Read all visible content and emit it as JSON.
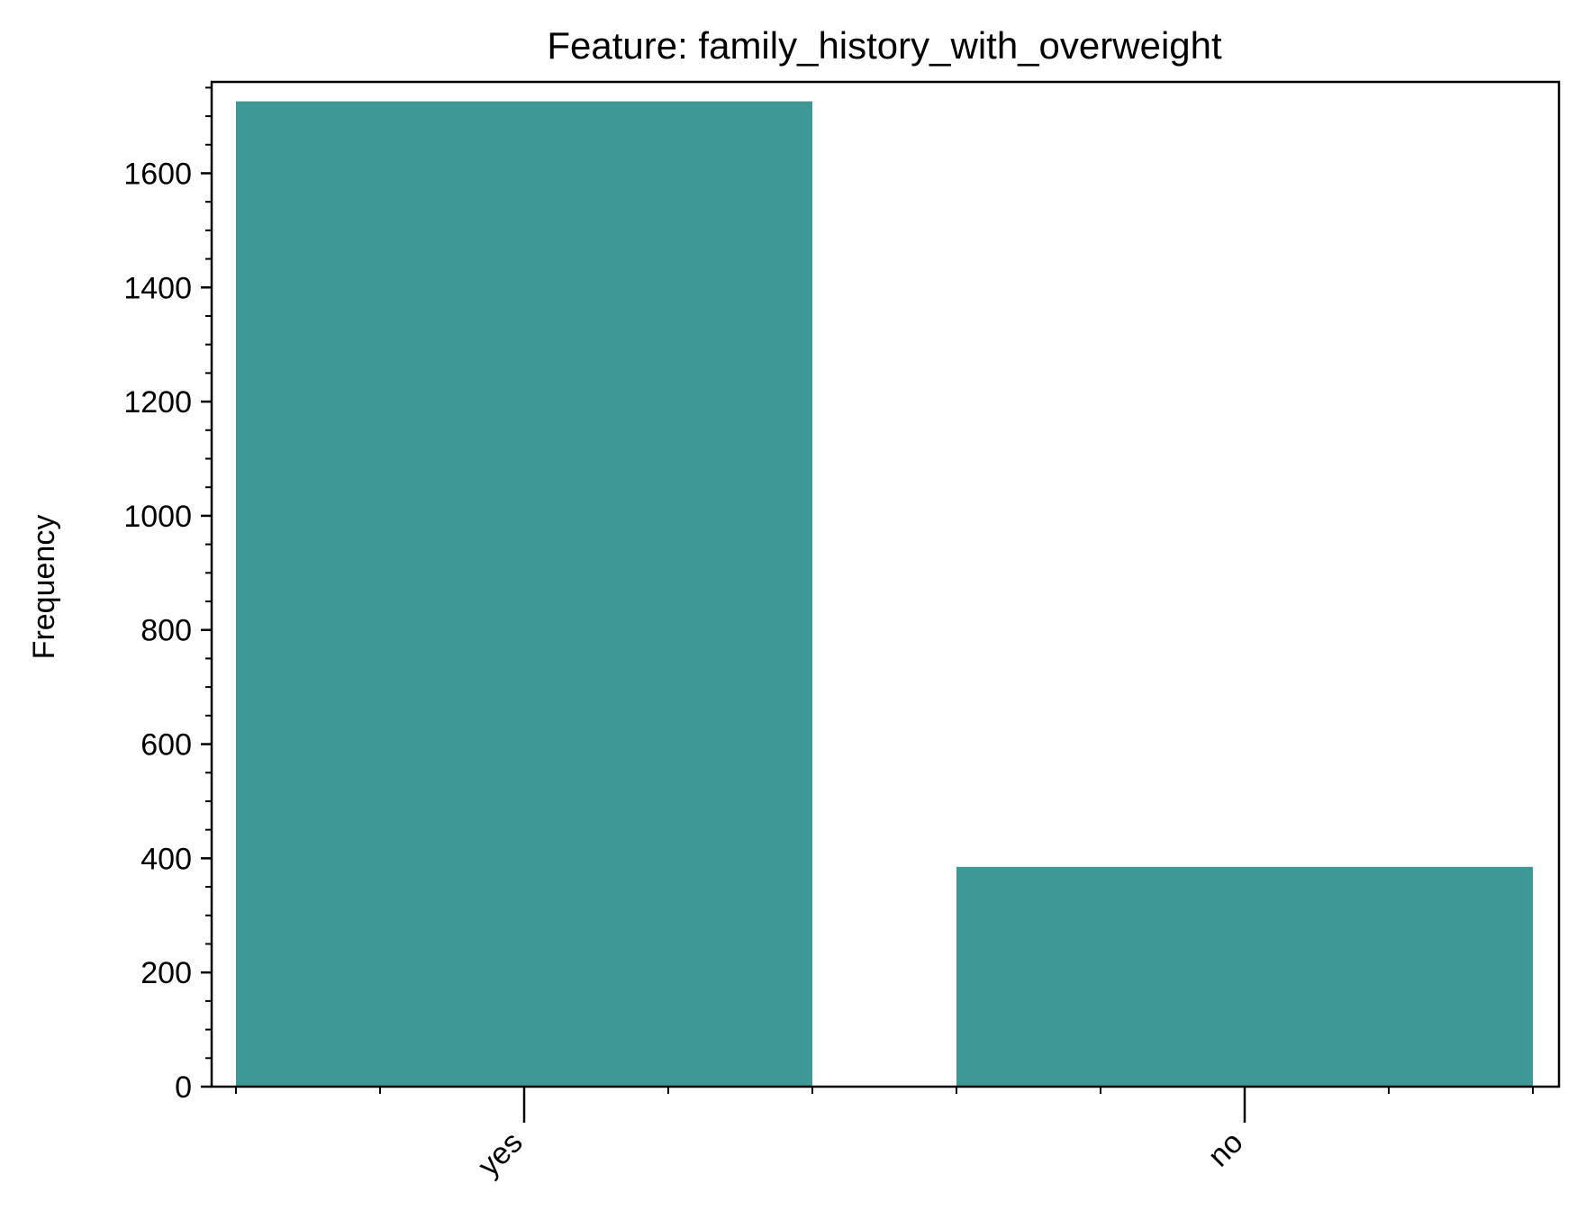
{
  "chart_data": {
    "type": "bar",
    "title": "Feature: family_history_with_overweight",
    "xlabel": "",
    "ylabel": "Frequency",
    "categories": [
      "yes",
      "no"
    ],
    "values": [
      1726,
      385
    ],
    "ylim": [
      0,
      1760
    ],
    "yticks": [
      0,
      200,
      400,
      600,
      800,
      1000,
      1200,
      1400,
      1600
    ],
    "y_minor_step": 50,
    "x_minor_ticks_per_bar": 5,
    "grid": false,
    "legend": "none",
    "bar_color": "#3d9896",
    "tick_label_rotation": "45deg"
  }
}
